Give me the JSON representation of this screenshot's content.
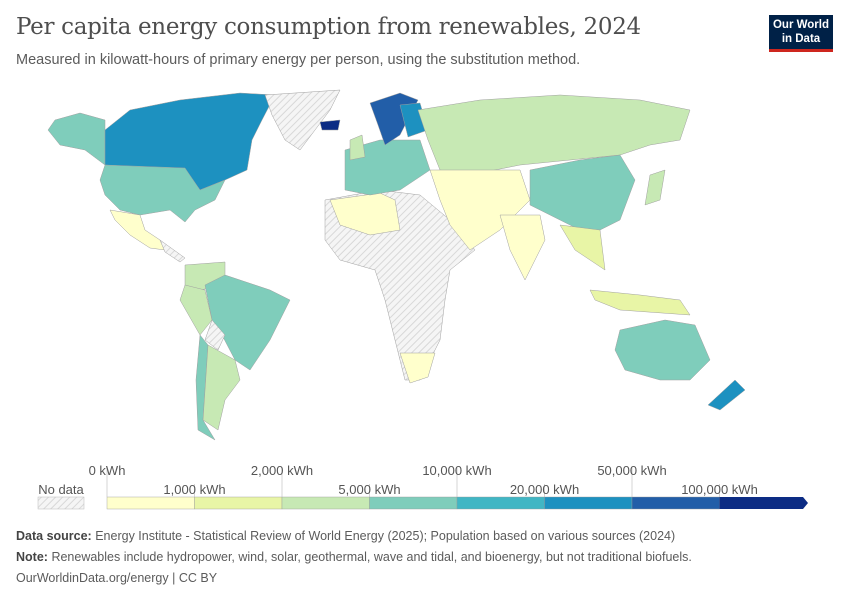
{
  "header": {
    "title": "Per capita energy consumption from renewables, 2024",
    "subtitle": "Measured in kilowatt-hours of primary energy per person, using the substitution method.",
    "logo": "Our World in Data"
  },
  "legend": {
    "no_data_label": "No data",
    "bins": [
      {
        "label": "0 kWh",
        "color": "#ffffcc"
      },
      {
        "label": "1,000 kWh",
        "color": "#e8f5a6"
      },
      {
        "label": "2,000 kWh",
        "color": "#c7e9b4"
      },
      {
        "label": "5,000 kWh",
        "color": "#7fcdbb"
      },
      {
        "label": "10,000 kWh",
        "color": "#41b6c4"
      },
      {
        "label": "20,000 kWh",
        "color": "#1d91c0"
      },
      {
        "label": "50,000 kWh",
        "color": "#225ea8"
      },
      {
        "label": "100,000 kWh",
        "color": "#0c2c84"
      }
    ]
  },
  "map_bins": {
    "canada": 5,
    "usa": 3,
    "alaska": 3,
    "mexico": 0,
    "central-america": -1,
    "greenland": -1,
    "iceland": 7,
    "venezuela-colombia": 2,
    "brazil": 3,
    "peru-ecuador": 2,
    "bolivia": -1,
    "chile": 3,
    "argentina": 2,
    "africa": -1,
    "north-africa": 0,
    "south-africa": 0,
    "europe": 3,
    "uk": 2,
    "scandinavia": 6,
    "finland": 5,
    "russia": 2,
    "middle-east-central-asia": 0,
    "china": 3,
    "india": 0,
    "southeast-asia": 1,
    "indonesia": 1,
    "japan": 2,
    "australia": 3,
    "new-zealand": 5
  },
  "footer": {
    "source_label": "Data source:",
    "source": "Energy Institute - Statistical Review of World Energy (2025); Population based on various sources (2024)",
    "note_label": "Note:",
    "note": "Renewables include hydropower, wind, solar, geothermal, wave and tidal, and bioenergy, but not traditional biofuels.",
    "link": "OurWorldinData.org/energy",
    "license": "| CC BY"
  }
}
